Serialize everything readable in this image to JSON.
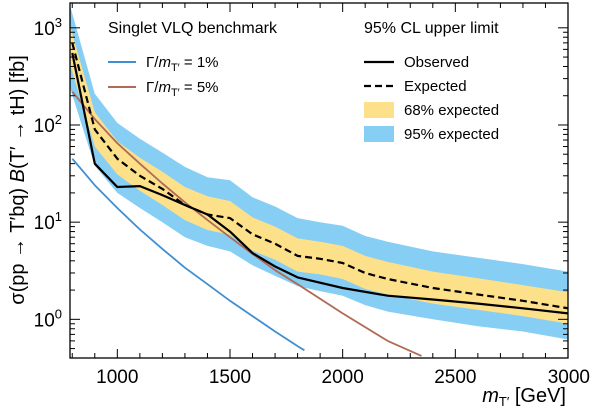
{
  "chart_data": {
    "type": "line",
    "title": "",
    "xlabel": "m_T' [GeV]",
    "ylabel": "σ(pp → T'bq) B(T' → tH) [fb]",
    "xlim": [
      790,
      3000
    ],
    "ylim": [
      0.4,
      1800
    ],
    "yscale": "log",
    "x_ticks": [
      1000,
      1500,
      2000,
      2500,
      3000
    ],
    "y_ticks": [
      1,
      10,
      100,
      1000
    ],
    "y_tick_labels": [
      "10^0",
      "10^1",
      "10^2",
      "10^3"
    ],
    "grid": false,
    "legend_left_title": "Singlet VLQ benchmark",
    "legend_right_title": "95% CL upper limit",
    "legend_placement": "top",
    "series": [
      {
        "name": "Observed",
        "style": "solid",
        "color": "#000000",
        "x": [
          800,
          900,
          1000,
          1100,
          1200,
          1300,
          1400,
          1500,
          1600,
          1700,
          1800,
          2000,
          2200,
          2400,
          2600,
          2800,
          3000
        ],
        "y": [
          550,
          40,
          23,
          23.5,
          19,
          15,
          12,
          8,
          4.8,
          3.5,
          2.7,
          2.1,
          1.75,
          1.6,
          1.45,
          1.3,
          1.15
        ]
      },
      {
        "name": "Expected",
        "style": "dashed",
        "color": "#000000",
        "x": [
          800,
          900,
          1000,
          1100,
          1200,
          1300,
          1400,
          1500,
          1600,
          1700,
          1800,
          1900,
          2000,
          2100,
          2200,
          2400,
          2600,
          2800,
          3000
        ],
        "y": [
          700,
          90,
          45,
          30,
          22,
          15,
          12,
          11,
          7.5,
          6,
          4.5,
          4.2,
          3.8,
          3.0,
          2.6,
          2.1,
          1.8,
          1.55,
          1.3
        ]
      },
      {
        "name": "Γ/m_T' = 1%",
        "style": "solid",
        "color": "#3f8fd2",
        "x": [
          800,
          900,
          1000,
          1100,
          1200,
          1300,
          1400,
          1500,
          1600,
          1700,
          1800,
          1830
        ],
        "y": [
          45,
          24,
          14,
          8.4,
          5.3,
          3.4,
          2.3,
          1.55,
          1.08,
          0.75,
          0.53,
          0.48
        ]
      },
      {
        "name": "Γ/m_T' = 5%",
        "style": "solid",
        "color": "#b06a55",
        "x": [
          800,
          900,
          1000,
          1100,
          1200,
          1300,
          1400,
          1500,
          1600,
          1700,
          1800,
          2000,
          2200,
          2350
        ],
        "y": [
          220,
          115,
          65,
          40,
          25,
          16,
          10.5,
          7,
          4.7,
          3.2,
          2.3,
          1.15,
          0.6,
          0.42
        ]
      }
    ],
    "bands": [
      {
        "name": "95% expected",
        "color": "#87cef5",
        "x": [
          790,
          900,
          1000,
          1100,
          1200,
          1300,
          1400,
          1500,
          1600,
          1700,
          1800,
          1900,
          2000,
          2100,
          2200,
          2400,
          2600,
          2800,
          3000
        ],
        "lower": [
          240,
          38,
          20,
          14,
          10,
          7,
          5.7,
          5,
          3.6,
          2.8,
          2.2,
          1.95,
          1.75,
          1.4,
          1.2,
          1.0,
          0.85,
          0.75,
          0.62
        ],
        "upper": [
          1700,
          210,
          105,
          72,
          52,
          37,
          29,
          27,
          18,
          14.5,
          11,
          10,
          9.2,
          7.2,
          6.3,
          5,
          4.3,
          3.7,
          3.1
        ]
      },
      {
        "name": "68% expected",
        "color": "#fde08a",
        "x": [
          790,
          900,
          1000,
          1100,
          1200,
          1300,
          1400,
          1500,
          1600,
          1700,
          1800,
          1900,
          2000,
          2100,
          2200,
          2400,
          2600,
          2800,
          3000
        ],
        "lower": [
          420,
          60,
          31,
          21,
          15,
          10.5,
          8.3,
          7.4,
          5.1,
          4.1,
          3.1,
          2.9,
          2.6,
          2.05,
          1.8,
          1.45,
          1.25,
          1.08,
          0.9
        ],
        "upper": [
          1050,
          135,
          68,
          46,
          33,
          23,
          18.5,
          16.5,
          11.2,
          9,
          6.8,
          6.3,
          5.7,
          4.5,
          3.9,
          3.1,
          2.65,
          2.25,
          1.9
        ]
      }
    ]
  },
  "legend": {
    "left": [
      {
        "label": "Γ/m_T' = 1%",
        "color": "#3f8fd2"
      },
      {
        "label": "Γ/m_T' = 5%",
        "color": "#b06a55"
      }
    ],
    "right": [
      {
        "label": "Observed",
        "kind": "solid"
      },
      {
        "label": "Expected",
        "kind": "dashed"
      },
      {
        "label": "68% expected",
        "kind": "band",
        "color": "#fde08a"
      },
      {
        "label": "95% expected",
        "kind": "band",
        "color": "#87cef5"
      }
    ]
  }
}
